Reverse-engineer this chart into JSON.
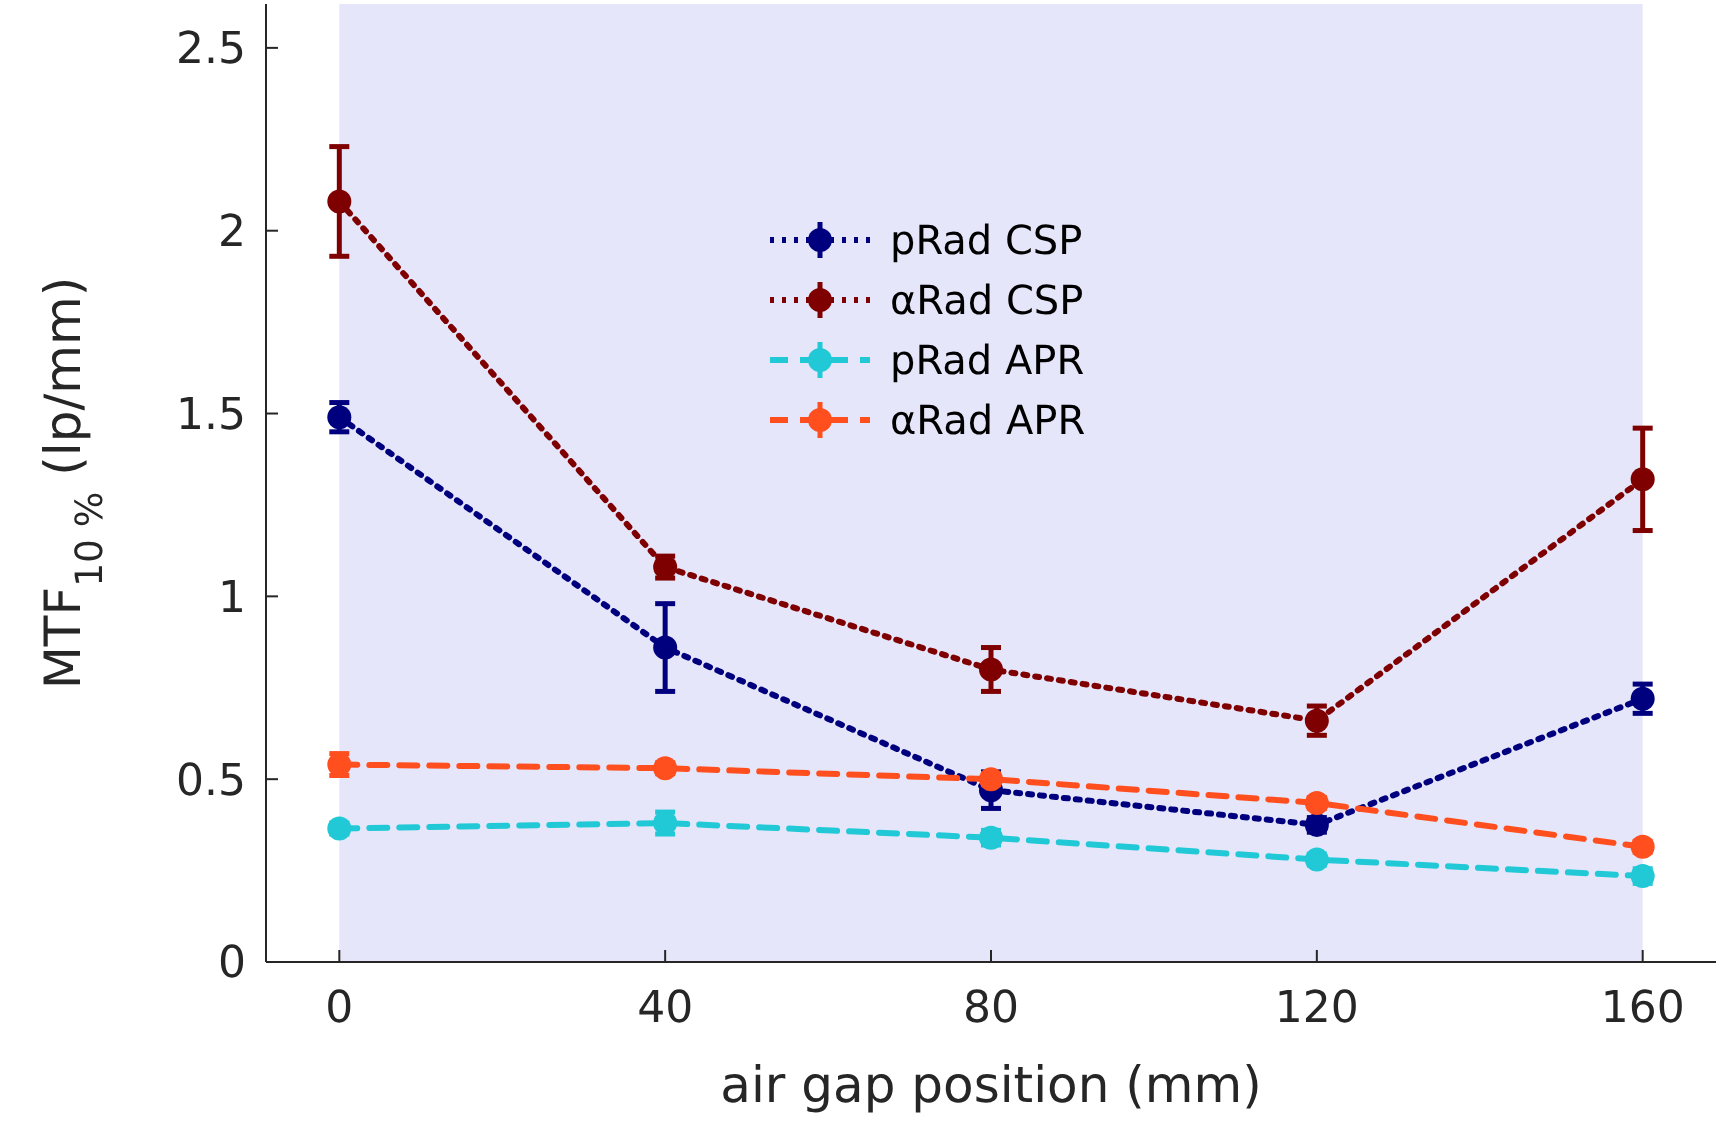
{
  "chart_data": {
    "type": "line",
    "xlabel": "air gap position (mm)",
    "ylabel": "MTF$_{10 %}$ (lp/mm)",
    "x": [
      0,
      40,
      80,
      120,
      160
    ],
    "xlim": [
      -9,
      169
    ],
    "xticks": [
      0,
      40,
      80,
      120,
      160
    ],
    "ylim": [
      0,
      2.62
    ],
    "yticks": [
      0,
      0.5,
      1,
      1.5,
      2,
      2.5
    ],
    "grid": false,
    "legend": "top",
    "marker": "circle",
    "bands": [
      {
        "axis": "x",
        "from": 0,
        "to": 160,
        "color": "#e6e6fa"
      }
    ],
    "series": [
      {
        "name": "pRad CSP",
        "color": "#00007f",
        "line_style": "dotted",
        "values": [
          1.49,
          0.86,
          0.47,
          0.375,
          0.72
        ],
        "errors": [
          0.04,
          0.12,
          0.05,
          0.02,
          0.04
        ]
      },
      {
        "name": "αRad CSP",
        "color": "#7f0000",
        "line_style": "dotted",
        "values": [
          2.08,
          1.08,
          0.8,
          0.66,
          1.32
        ],
        "errors": [
          0.15,
          0.03,
          0.06,
          0.04,
          0.14
        ]
      },
      {
        "name": "pRad APR",
        "color": "#21c8d6",
        "line_style": "dashed",
        "values": [
          0.365,
          0.38,
          0.34,
          0.28,
          0.235
        ],
        "errors": [
          0.015,
          0.03,
          0.02,
          0.015,
          0.02
        ]
      },
      {
        "name": "αRad APR",
        "color": "#ff4f1f",
        "line_style": "dashed",
        "values": [
          0.54,
          0.53,
          0.5,
          0.435,
          0.315
        ],
        "errors": [
          0.03,
          0.015,
          0.015,
          0.015,
          0.015
        ]
      }
    ]
  }
}
